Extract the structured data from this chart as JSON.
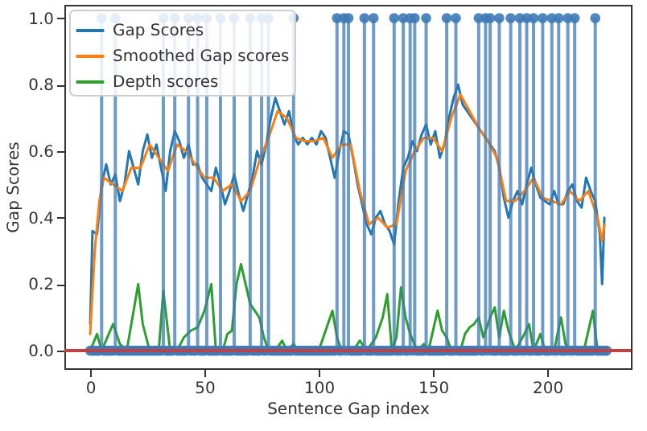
{
  "chart_data": {
    "type": "line",
    "xlabel": "Sentence Gap index",
    "ylabel": "Gap Scores",
    "xlim": [
      -11.3,
      236.6
    ],
    "ylim": [
      -0.053,
      1.04
    ],
    "xticks": [
      0,
      50,
      100,
      150,
      200
    ],
    "yticks": [
      {
        "value": 0,
        "label": "0.0"
      },
      0.2,
      0.4,
      0.6,
      0.8,
      {
        "value": 1,
        "label": "1.0"
      }
    ],
    "legend": "top left",
    "line_style": "solid",
    "series": [
      {
        "name": "Gap Scores",
        "color": "#1f77b4",
        "x": [
          0,
          1,
          3,
          5,
          7,
          9,
          11,
          13,
          15,
          17,
          19,
          21,
          23,
          25,
          27,
          29,
          31,
          33,
          35,
          37,
          39,
          41,
          43,
          45,
          47,
          49,
          51,
          53,
          55,
          57,
          59,
          61,
          63,
          65,
          67,
          69,
          71,
          73,
          75,
          77,
          79,
          81,
          83,
          85,
          87,
          89,
          91,
          93,
          95,
          97,
          99,
          101,
          103,
          105,
          107,
          109,
          111,
          113,
          115,
          117,
          119,
          121,
          123,
          125,
          127,
          129,
          131,
          133,
          135,
          137,
          139,
          141,
          143,
          145,
          147,
          149,
          151,
          153,
          155,
          157,
          159,
          161,
          163,
          165,
          167,
          169,
          171,
          173,
          175,
          177,
          179,
          181,
          183,
          185,
          187,
          189,
          191,
          193,
          195,
          197,
          199,
          201,
          203,
          205,
          207,
          209,
          211,
          213,
          215,
          217,
          219,
          221,
          223,
          224,
          225
        ],
        "values": [
          0.08,
          0.36,
          0.35,
          0.5,
          0.56,
          0.5,
          0.53,
          0.45,
          0.5,
          0.6,
          0.55,
          0.5,
          0.6,
          0.65,
          0.58,
          0.62,
          0.55,
          0.48,
          0.6,
          0.66,
          0.63,
          0.58,
          0.62,
          0.56,
          0.56,
          0.52,
          0.5,
          0.48,
          0.55,
          0.5,
          0.44,
          0.48,
          0.53,
          0.47,
          0.42,
          0.47,
          0.52,
          0.6,
          0.56,
          0.62,
          0.7,
          0.76,
          0.72,
          0.68,
          0.72,
          0.65,
          0.62,
          0.64,
          0.62,
          0.64,
          0.62,
          0.66,
          0.64,
          0.58,
          0.52,
          0.6,
          0.66,
          0.65,
          0.58,
          0.5,
          0.44,
          0.38,
          0.35,
          0.4,
          0.42,
          0.38,
          0.36,
          0.32,
          0.45,
          0.55,
          0.58,
          0.63,
          0.6,
          0.65,
          0.68,
          0.62,
          0.66,
          0.58,
          0.62,
          0.7,
          0.76,
          0.8,
          0.74,
          0.72,
          0.7,
          0.68,
          0.66,
          0.64,
          0.62,
          0.6,
          0.55,
          0.46,
          0.4,
          0.45,
          0.48,
          0.44,
          0.5,
          0.55,
          0.5,
          0.46,
          0.45,
          0.44,
          0.48,
          0.44,
          0.44,
          0.48,
          0.5,
          0.45,
          0.43,
          0.52,
          0.48,
          0.45,
          0.35,
          0.2,
          0.4
        ]
      },
      {
        "name": "Smoothed Gap scores",
        "color": "#ff7f0e",
        "x": [
          0,
          2,
          4,
          6,
          10,
          14,
          18,
          22,
          26,
          30,
          34,
          38,
          42,
          46,
          50,
          54,
          58,
          62,
          66,
          70,
          74,
          78,
          82,
          86,
          90,
          94,
          98,
          102,
          106,
          110,
          114,
          118,
          122,
          126,
          130,
          134,
          138,
          142,
          146,
          150,
          154,
          158,
          162,
          166,
          170,
          174,
          178,
          182,
          186,
          190,
          194,
          198,
          202,
          206,
          210,
          214,
          218,
          222,
          224,
          225
        ],
        "values": [
          0.05,
          0.3,
          0.45,
          0.52,
          0.5,
          0.48,
          0.55,
          0.55,
          0.62,
          0.58,
          0.54,
          0.62,
          0.6,
          0.56,
          0.52,
          0.52,
          0.48,
          0.5,
          0.45,
          0.48,
          0.57,
          0.64,
          0.72,
          0.7,
          0.64,
          0.63,
          0.63,
          0.64,
          0.58,
          0.62,
          0.62,
          0.48,
          0.38,
          0.4,
          0.37,
          0.38,
          0.54,
          0.6,
          0.64,
          0.64,
          0.6,
          0.7,
          0.77,
          0.72,
          0.67,
          0.63,
          0.58,
          0.45,
          0.45,
          0.48,
          0.52,
          0.46,
          0.45,
          0.44,
          0.48,
          0.45,
          0.48,
          0.4,
          0.33,
          0.38
        ]
      },
      {
        "name": "Depth scores",
        "color": "#2ca02c",
        "x": [
          0,
          3,
          5,
          10,
          13,
          16,
          19,
          21,
          23,
          26,
          30,
          32,
          35,
          38,
          41,
          44,
          47,
          50,
          53,
          55,
          58,
          60,
          62,
          64,
          66,
          68,
          70,
          72,
          74,
          76,
          78,
          81,
          84,
          86,
          89,
          91,
          100,
          104,
          106,
          108,
          110,
          115,
          118,
          121,
          125,
          128,
          130,
          132,
          134,
          136,
          138,
          140,
          143,
          146,
          148,
          152,
          154,
          156,
          158,
          162,
          164,
          166,
          168,
          170,
          172,
          175,
          177,
          179,
          181,
          183,
          186,
          190,
          192,
          194,
          197,
          199,
          203,
          206,
          208,
          210,
          216,
          220,
          222,
          225
        ],
        "values": [
          0,
          0.05,
          0,
          0.08,
          0.02,
          0,
          0.12,
          0.2,
          0.08,
          0,
          0,
          0.18,
          0,
          0,
          0.04,
          0.06,
          0.07,
          0.12,
          0.2,
          0,
          0,
          0.05,
          0.06,
          0.2,
          0.26,
          0.2,
          0.14,
          0.12,
          0.1,
          0.04,
          0,
          0,
          0.03,
          0,
          0.02,
          0,
          0,
          0.08,
          0.12,
          0.04,
          0,
          0,
          0.03,
          0,
          0.04,
          0.1,
          0.17,
          0,
          0.04,
          0.19,
          0.1,
          0.05,
          0,
          0.02,
          0,
          0.12,
          0.06,
          0.04,
          0,
          0,
          0.05,
          0.07,
          0.08,
          0.1,
          0.04,
          0.1,
          0.13,
          0.04,
          0.12,
          0.06,
          0,
          0.05,
          0.08,
          0,
          0.05,
          0,
          0,
          0.1,
          0.02,
          0,
          0,
          0.12,
          0,
          0
        ]
      },
      {
        "type": "lollipop",
        "color": "#3d7ab8",
        "marker": "circle",
        "x": [
          0,
          1,
          2,
          3,
          4,
          5,
          6,
          7,
          8,
          9,
          10,
          11,
          12,
          13,
          14,
          15,
          16,
          17,
          18,
          19,
          20,
          21,
          22,
          23,
          24,
          25,
          26,
          27,
          28,
          29,
          30,
          31,
          32,
          33,
          34,
          35,
          36,
          37,
          38,
          39,
          40,
          41,
          42,
          43,
          44,
          45,
          46,
          47,
          48,
          49,
          50,
          51,
          52,
          53,
          54,
          55,
          56,
          57,
          58,
          59,
          60,
          61,
          62,
          63,
          64,
          65,
          66,
          67,
          68,
          69,
          70,
          71,
          72,
          73,
          74,
          75,
          76,
          77,
          78,
          79,
          80,
          81,
          82,
          83,
          84,
          85,
          86,
          87,
          88,
          89,
          90,
          91,
          92,
          93,
          94,
          95,
          96,
          97,
          98,
          99,
          100,
          101,
          102,
          103,
          104,
          105,
          106,
          107,
          108,
          109,
          110,
          111,
          112,
          113,
          114,
          115,
          116,
          117,
          118,
          119,
          120,
          121,
          122,
          123,
          124,
          125,
          126,
          127,
          128,
          129,
          130,
          131,
          132,
          133,
          134,
          135,
          136,
          137,
          138,
          139,
          140,
          141,
          142,
          143,
          144,
          145,
          146,
          147,
          148,
          149,
          150,
          151,
          152,
          153,
          154,
          155,
          156,
          157,
          158,
          159,
          160,
          161,
          162,
          163,
          164,
          165,
          166,
          167,
          168,
          169,
          170,
          171,
          172,
          173,
          174,
          175,
          176,
          177,
          178,
          179,
          180,
          181,
          182,
          183,
          184,
          185,
          186,
          187,
          188,
          189,
          190,
          191,
          192,
          193,
          194,
          195,
          196,
          197,
          198,
          199,
          200,
          201,
          202,
          203,
          204,
          205,
          206,
          207,
          208,
          209,
          210,
          211,
          212,
          213,
          214,
          215,
          216,
          217,
          218,
          219,
          220,
          221,
          222,
          223,
          224,
          225,
          226
        ],
        "values": [
          0,
          0,
          0,
          0,
          0,
          1,
          0,
          0,
          0,
          0,
          0,
          1,
          0,
          0,
          0,
          0,
          0,
          0,
          0,
          0,
          0,
          0,
          0,
          0,
          0,
          0,
          0,
          0,
          0,
          0,
          0,
          0,
          1,
          0,
          0,
          0,
          0,
          1,
          0,
          0,
          0,
          0,
          0,
          1,
          0,
          0,
          0,
          1,
          0,
          0,
          0,
          1,
          0,
          0,
          0,
          0,
          0,
          1,
          0,
          0,
          0,
          0,
          0,
          1,
          0,
          0,
          0,
          0,
          0,
          0,
          1,
          0,
          0,
          0,
          0,
          1,
          0,
          0,
          1,
          0,
          0,
          0,
          0,
          0,
          0,
          0,
          0,
          0,
          0,
          1,
          0,
          0,
          0,
          0,
          0,
          0,
          0,
          0,
          0,
          0,
          0,
          0,
          0,
          0,
          0,
          0,
          0,
          0,
          1,
          0,
          0,
          1,
          0,
          1,
          0,
          0,
          0,
          0,
          0,
          0,
          1,
          0,
          0,
          0,
          1,
          0,
          0,
          0,
          0,
          0,
          0,
          0,
          0,
          1,
          0,
          0,
          0,
          1,
          0,
          0,
          1,
          0,
          1,
          0,
          0,
          0,
          0,
          1,
          0,
          0,
          0,
          0,
          0,
          0,
          0,
          0,
          1,
          0,
          0,
          0,
          1,
          0,
          0,
          0,
          0,
          0,
          0,
          0,
          0,
          0,
          1,
          0,
          0,
          1,
          0,
          1,
          0,
          0,
          0,
          1,
          0,
          0,
          0,
          0,
          1,
          0,
          0,
          0,
          1,
          0,
          0,
          1,
          0,
          0,
          1,
          0,
          0,
          0,
          1,
          0,
          0,
          0,
          1,
          0,
          0,
          1,
          0,
          0,
          0,
          1,
          0,
          0,
          1,
          0,
          0,
          0,
          0,
          0,
          0,
          0,
          0,
          1,
          0,
          0,
          0,
          0,
          0
        ]
      }
    ],
    "ref_lines": [
      {
        "axis": "y",
        "value": 0,
        "color": "#c44040"
      }
    ]
  }
}
